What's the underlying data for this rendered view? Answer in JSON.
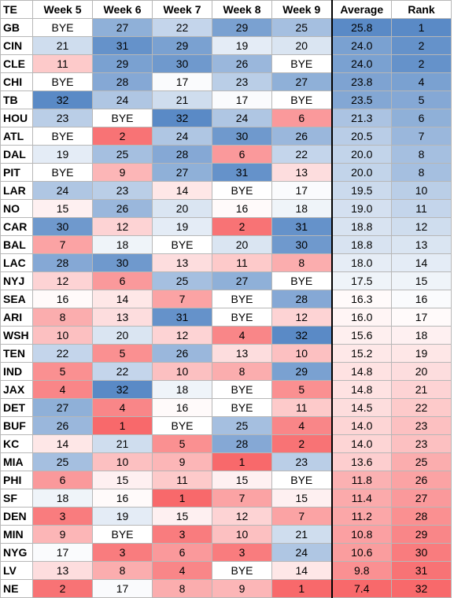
{
  "chart_data": {
    "type": "heatmap",
    "header": {
      "team": "TE",
      "weeks": [
        "Week 5",
        "Week 6",
        "Week 7",
        "Week 8",
        "Week 9"
      ],
      "average": "Average",
      "rank": "Rank"
    },
    "bye_label": "BYE",
    "value_range": [
      1,
      32
    ],
    "color_scale": {
      "low": "#f8696b",
      "mid": "#ffffff",
      "high": "#5a8ac6"
    },
    "rows": [
      {
        "team": "GB",
        "weeks": [
          "BYE",
          "27",
          "22",
          "29",
          "25"
        ],
        "average": "25.8",
        "rank": "1"
      },
      {
        "team": "CIN",
        "weeks": [
          "21",
          "31",
          "29",
          "19",
          "20"
        ],
        "average": "24.0",
        "rank": "2"
      },
      {
        "team": "CLE",
        "weeks": [
          "11",
          "29",
          "30",
          "26",
          "BYE"
        ],
        "average": "24.0",
        "rank": "2"
      },
      {
        "team": "CHI",
        "weeks": [
          "BYE",
          "28",
          "17",
          "23",
          "27"
        ],
        "average": "23.8",
        "rank": "4"
      },
      {
        "team": "TB",
        "weeks": [
          "32",
          "24",
          "21",
          "17",
          "BYE"
        ],
        "average": "23.5",
        "rank": "5"
      },
      {
        "team": "HOU",
        "weeks": [
          "23",
          "BYE",
          "32",
          "24",
          "6"
        ],
        "average": "21.3",
        "rank": "6"
      },
      {
        "team": "ATL",
        "weeks": [
          "BYE",
          "2",
          "24",
          "30",
          "26"
        ],
        "average": "20.5",
        "rank": "7"
      },
      {
        "team": "DAL",
        "weeks": [
          "19",
          "25",
          "28",
          "6",
          "22"
        ],
        "average": "20.0",
        "rank": "8"
      },
      {
        "team": "PIT",
        "weeks": [
          "BYE",
          "9",
          "27",
          "31",
          "13"
        ],
        "average": "20.0",
        "rank": "8"
      },
      {
        "team": "LAR",
        "weeks": [
          "24",
          "23",
          "14",
          "BYE",
          "17"
        ],
        "average": "19.5",
        "rank": "10"
      },
      {
        "team": "NO",
        "weeks": [
          "15",
          "26",
          "20",
          "16",
          "18"
        ],
        "average": "19.0",
        "rank": "11"
      },
      {
        "team": "CAR",
        "weeks": [
          "30",
          "12",
          "19",
          "2",
          "31"
        ],
        "average": "18.8",
        "rank": "12"
      },
      {
        "team": "BAL",
        "weeks": [
          "7",
          "18",
          "BYE",
          "20",
          "30"
        ],
        "average": "18.8",
        "rank": "13"
      },
      {
        "team": "LAC",
        "weeks": [
          "28",
          "30",
          "13",
          "11",
          "8"
        ],
        "average": "18.0",
        "rank": "14"
      },
      {
        "team": "NYJ",
        "weeks": [
          "12",
          "6",
          "25",
          "27",
          "BYE"
        ],
        "average": "17.5",
        "rank": "15"
      },
      {
        "team": "SEA",
        "weeks": [
          "16",
          "14",
          "7",
          "BYE",
          "28"
        ],
        "average": "16.3",
        "rank": "16"
      },
      {
        "team": "ARI",
        "weeks": [
          "8",
          "13",
          "31",
          "BYE",
          "12"
        ],
        "average": "16.0",
        "rank": "17"
      },
      {
        "team": "WSH",
        "weeks": [
          "10",
          "20",
          "12",
          "4",
          "32"
        ],
        "average": "15.6",
        "rank": "18"
      },
      {
        "team": "TEN",
        "weeks": [
          "22",
          "5",
          "26",
          "13",
          "10"
        ],
        "average": "15.2",
        "rank": "19"
      },
      {
        "team": "IND",
        "weeks": [
          "5",
          "22",
          "10",
          "8",
          "29"
        ],
        "average": "14.8",
        "rank": "20"
      },
      {
        "team": "JAX",
        "weeks": [
          "4",
          "32",
          "18",
          "BYE",
          "5"
        ],
        "average": "14.8",
        "rank": "21"
      },
      {
        "team": "DET",
        "weeks": [
          "27",
          "4",
          "16",
          "BYE",
          "11"
        ],
        "average": "14.5",
        "rank": "22"
      },
      {
        "team": "BUF",
        "weeks": [
          "26",
          "1",
          "BYE",
          "25",
          "4"
        ],
        "average": "14.0",
        "rank": "23"
      },
      {
        "team": "KC",
        "weeks": [
          "14",
          "21",
          "5",
          "28",
          "2"
        ],
        "average": "14.0",
        "rank": "23"
      },
      {
        "team": "MIA",
        "weeks": [
          "25",
          "10",
          "9",
          "1",
          "23"
        ],
        "average": "13.6",
        "rank": "25"
      },
      {
        "team": "PHI",
        "weeks": [
          "6",
          "15",
          "11",
          "15",
          "BYE"
        ],
        "average": "11.8",
        "rank": "26"
      },
      {
        "team": "SF",
        "weeks": [
          "18",
          "16",
          "1",
          "7",
          "15"
        ],
        "average": "11.4",
        "rank": "27"
      },
      {
        "team": "DEN",
        "weeks": [
          "3",
          "19",
          "15",
          "12",
          "7"
        ],
        "average": "11.2",
        "rank": "28"
      },
      {
        "team": "MIN",
        "weeks": [
          "9",
          "BYE",
          "3",
          "10",
          "21"
        ],
        "average": "10.8",
        "rank": "29"
      },
      {
        "team": "NYG",
        "weeks": [
          "17",
          "3",
          "6",
          "3",
          "24"
        ],
        "average": "10.6",
        "rank": "30"
      },
      {
        "team": "LV",
        "weeks": [
          "13",
          "8",
          "4",
          "BYE",
          "14"
        ],
        "average": "9.8",
        "rank": "31"
      },
      {
        "team": "NE",
        "weeks": [
          "2",
          "17",
          "8",
          "9",
          "1"
        ],
        "average": "7.4",
        "rank": "32"
      }
    ]
  }
}
